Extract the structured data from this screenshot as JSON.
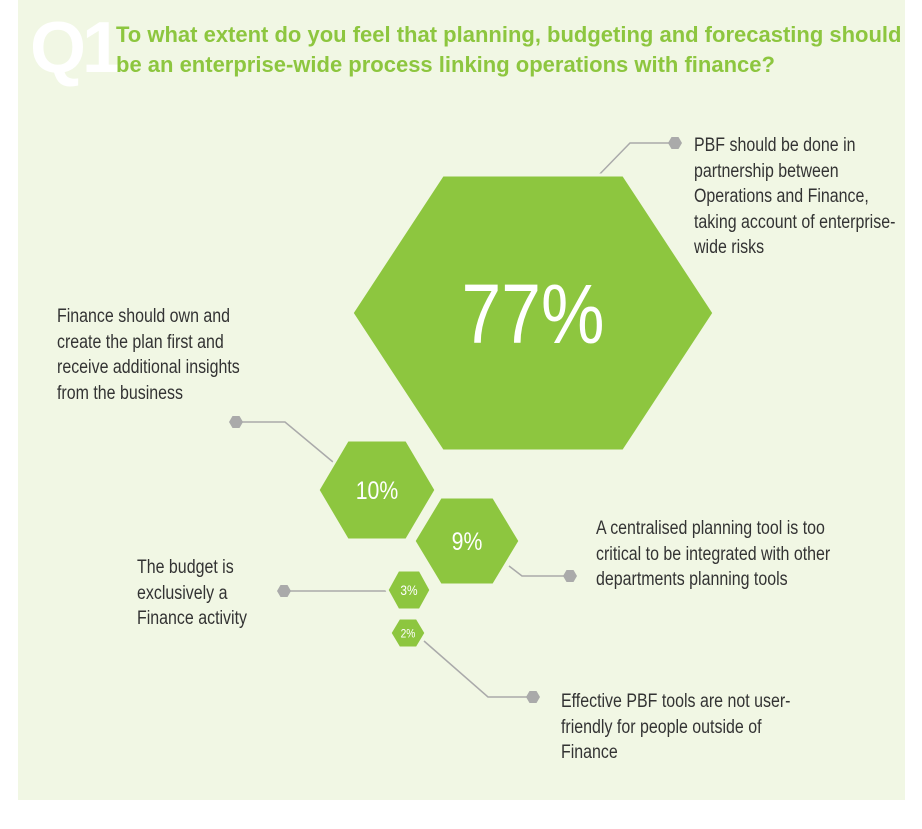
{
  "chart_data": {
    "type": "hexagon",
    "question": "Q1",
    "title": "To what extent do you feel that planning, budgeting and forecasting should be an enterprise-wide process linking operations with finance?",
    "categories": [
      "PBF should be done in partnership between Operations and Finance, taking account of enterprise-wide risks",
      "Finance should own and create the plan first and receive additional insights from the business",
      "A centralised planning tool is too critical to be integrated with other departments planning tools",
      "The budget is exclusively a Finance activity",
      "Effective PBF tools are not user-friendly for people outside of Finance"
    ],
    "values": [
      77,
      10,
      9,
      3,
      2
    ],
    "value_labels": [
      "77%",
      "10%",
      "9%",
      "3%",
      "2%"
    ],
    "color": "#8dc63f"
  }
}
